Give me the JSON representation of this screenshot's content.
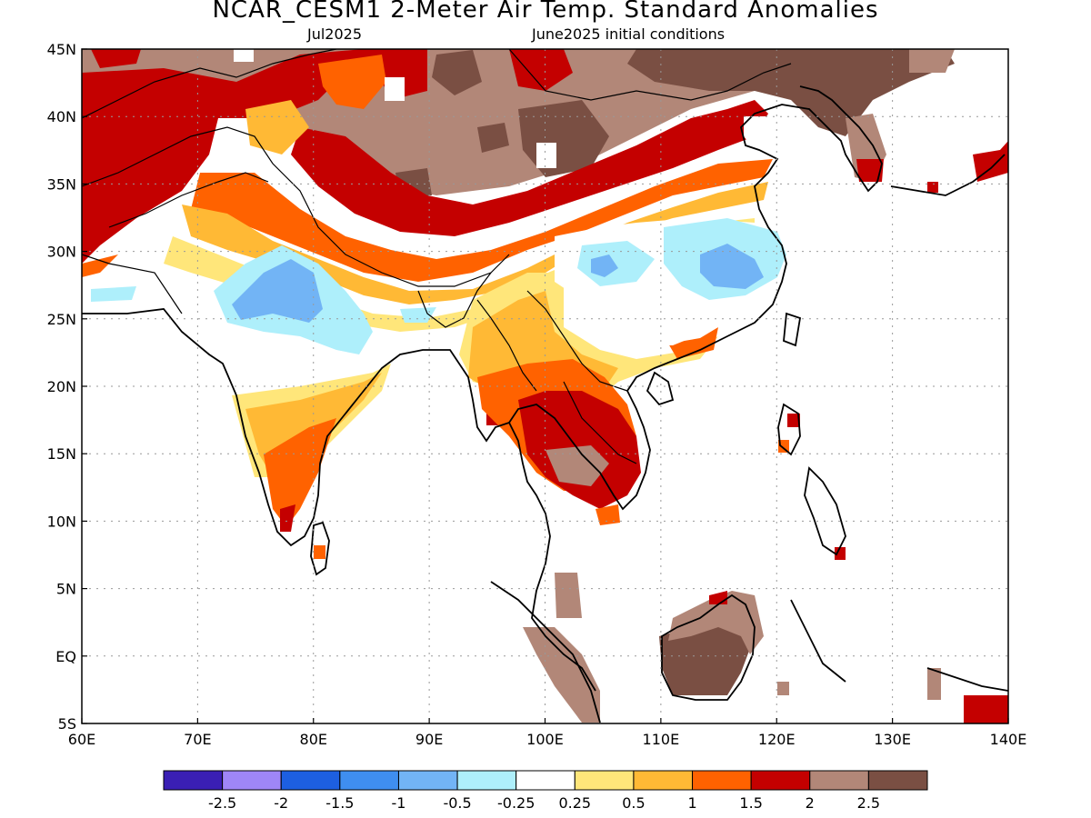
{
  "header": {
    "title": "NCAR_CESM1 2-Meter Air Temp. Standard Anomalies",
    "month": "Jul2025",
    "init": "June2025 initial conditions"
  },
  "map": {
    "lon_range": [
      60,
      140
    ],
    "lat_range": [
      -5,
      45
    ],
    "lon_ticks": [
      "60E",
      "70E",
      "80E",
      "90E",
      "100E",
      "110E",
      "120E",
      "130E",
      "140E"
    ],
    "lat_ticks": [
      "5S",
      "EQ",
      "5N",
      "10N",
      "15N",
      "20N",
      "25N",
      "30N",
      "35N",
      "40N",
      "45N"
    ],
    "gridlines": "dotted"
  },
  "colorbar": {
    "colors": [
      "#3a1fb4",
      "#9f86f7",
      "#1d5fe1",
      "#3f8ef0",
      "#72b4f5",
      "#aeeffb",
      "#ffffff",
      "#ffe67a",
      "#ffb935",
      "#ff6200",
      "#c40000",
      "#b28778",
      "#7a4f43"
    ],
    "labels": [
      "-2.5",
      "-2",
      "-1.5",
      "-1",
      "-0.5",
      "-0.25",
      "0.25",
      "0.5",
      "1",
      "1.5",
      "2",
      "2.5"
    ]
  },
  "regions": [
    {
      "name": "north-brown-band",
      "color": "#b28778"
    },
    {
      "name": "mongolia-dark-brown",
      "color": "#7a4f43"
    },
    {
      "name": "northwest-red",
      "color": "#c40000"
    },
    {
      "name": "tibet-orange",
      "color": "#ff6200"
    },
    {
      "name": "india-blue",
      "color": "#72b4f5"
    },
    {
      "name": "china-blue",
      "color": "#72b4f5"
    },
    {
      "name": "indochina-red",
      "color": "#c40000"
    },
    {
      "name": "borneo-brown",
      "color": "#7a4f43"
    }
  ]
}
